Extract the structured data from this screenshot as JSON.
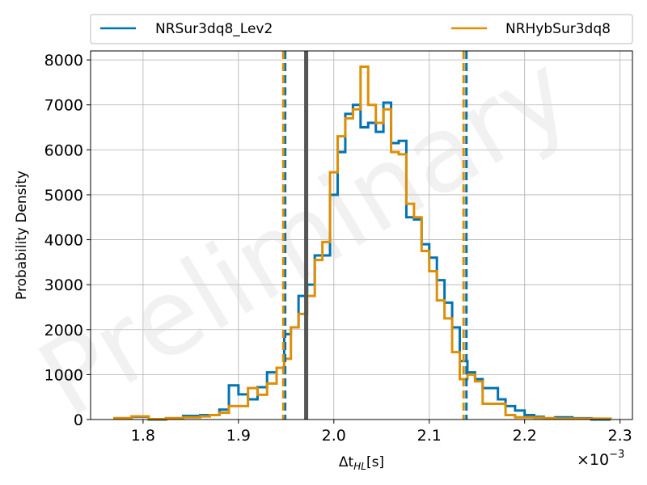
{
  "chart_data": {
    "type": "histogram",
    "title": "",
    "xlabel": "Δt_{HL}[s]",
    "xlabel_display": "Δt",
    "xlabel_sub": "HL",
    "xlabel_unit": "[s]",
    "ylabel": "Probability Density",
    "x_offset_text": "×10⁻³",
    "x_offset_base": "×10",
    "x_offset_exp": "−3",
    "xlim": [
      1.745,
      2.313
    ],
    "ylim": [
      0,
      8200
    ],
    "xticks": [
      1.8,
      1.9,
      2.0,
      2.1,
      2.2,
      2.3
    ],
    "xtick_labels": [
      "1.8",
      "1.9",
      "2.0",
      "2.1",
      "2.2",
      "2.3"
    ],
    "yticks": [
      0,
      1000,
      2000,
      3000,
      4000,
      5000,
      6000,
      7000,
      8000
    ],
    "ytick_labels": [
      "0",
      "1000",
      "2000",
      "3000",
      "4000",
      "5000",
      "6000",
      "7000",
      "8000"
    ],
    "grid": true,
    "legend_position": "top, above plot",
    "watermark": "Preliminary",
    "injection_value": 1.971,
    "series": [
      {
        "name": "NRSur3dq8_Lev2",
        "color": "#0173b2",
        "edges": [
          1.77,
          1.788,
          1.806,
          1.824,
          1.842,
          1.86,
          1.87,
          1.88,
          1.89,
          1.9,
          1.91,
          1.92,
          1.93,
          1.94,
          1.948,
          1.955,
          1.963,
          1.972,
          1.98,
          1.988,
          1.996,
          2.004,
          2.012,
          2.02,
          2.028,
          2.036,
          2.044,
          2.052,
          2.06,
          2.068,
          2.076,
          2.084,
          2.092,
          2.1,
          2.108,
          2.116,
          2.124,
          2.132,
          2.14,
          2.148,
          2.156,
          2.164,
          2.172,
          2.18,
          2.19,
          2.2,
          2.21,
          2.22,
          2.232,
          2.25,
          2.27,
          2.29
        ],
        "counts": [
          30,
          60,
          0,
          30,
          80,
          100,
          100,
          220,
          760,
          560,
          450,
          720,
          1050,
          1150,
          1900,
          2050,
          2750,
          3000,
          3650,
          3650,
          5000,
          5950,
          6800,
          7000,
          6500,
          6600,
          6400,
          7050,
          6150,
          6200,
          4500,
          4450,
          3900,
          3600,
          3100,
          2600,
          2050,
          1300,
          1050,
          900,
          700,
          700,
          450,
          300,
          200,
          100,
          60,
          30,
          50,
          30,
          0
        ]
      },
      {
        "name": "NRHybSur3dq8",
        "color": "#de8f05",
        "edges": [
          1.77,
          1.788,
          1.806,
          1.824,
          1.842,
          1.86,
          1.87,
          1.88,
          1.89,
          1.9,
          1.91,
          1.92,
          1.93,
          1.94,
          1.948,
          1.955,
          1.963,
          1.972,
          1.98,
          1.988,
          1.996,
          2.004,
          2.012,
          2.02,
          2.028,
          2.036,
          2.044,
          2.052,
          2.06,
          2.068,
          2.076,
          2.084,
          2.092,
          2.1,
          2.108,
          2.116,
          2.124,
          2.132,
          2.14,
          2.148,
          2.156,
          2.164,
          2.172,
          2.18,
          2.19,
          2.2,
          2.21,
          2.22,
          2.232,
          2.25,
          2.27,
          2.29
        ],
        "counts": [
          30,
          70,
          10,
          30,
          50,
          70,
          100,
          150,
          300,
          300,
          700,
          550,
          800,
          1150,
          1350,
          2050,
          2350,
          2750,
          3550,
          3950,
          5500,
          6300,
          6700,
          6900,
          7850,
          7000,
          6600,
          6900,
          5950,
          5900,
          4800,
          4500,
          3750,
          3300,
          2650,
          2250,
          1500,
          900,
          1000,
          850,
          350,
          350,
          350,
          100,
          50,
          50,
          40,
          30,
          20,
          20,
          20
        ]
      }
    ],
    "credible_intervals": [
      {
        "series": "NRSur3dq8_Lev2",
        "color": "#0173b2",
        "lower": 1.949,
        "upper": 2.139
      },
      {
        "series": "NRHybSur3dq8",
        "color": "#de8f05",
        "lower": 1.947,
        "upper": 2.136
      }
    ]
  }
}
